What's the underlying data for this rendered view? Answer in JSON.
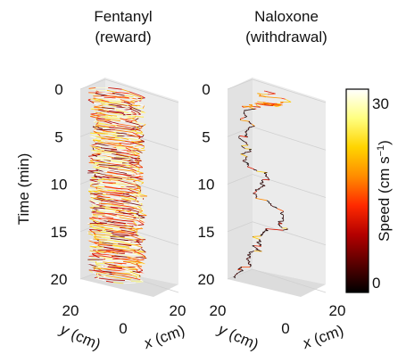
{
  "chart_data": [
    {
      "type": "line",
      "panel": "fentanyl",
      "title": [
        "Fentanyl",
        "(reward)"
      ],
      "zlabel": "Time (min)",
      "zlim": [
        0,
        20
      ],
      "zticks": [
        "0",
        "5",
        "10",
        "15",
        "20"
      ],
      "ylabel_italic": "y",
      "ylabel_unit": " (cm)",
      "xlabel_italic": "x",
      "xlabel_unit": " (cm)",
      "ytick_far": "20",
      "origin_tick": "0",
      "xtick_far": "20",
      "xlim": [
        0,
        20
      ],
      "ylim": [
        0,
        20
      ],
      "trajectory_description": "dense circling, high speed throughout",
      "speed_range": [
        5,
        32
      ]
    },
    {
      "type": "line",
      "panel": "naloxone",
      "title": [
        "Naloxone",
        "(withdrawal)"
      ],
      "zlim": [
        0,
        20
      ],
      "zticks": [
        "0",
        "5",
        "10",
        "15",
        "20"
      ],
      "ylabel_italic": "y",
      "ylabel_unit": " (cm)",
      "xlabel_italic": "x",
      "xlabel_unit": " (cm)",
      "ytick_far": "20",
      "origin_tick": "0",
      "xtick_far": "20",
      "xlim": [
        0,
        20
      ],
      "ylim": [
        0,
        20
      ],
      "trajectory_description": "sparse wandering, low speed with occasional bursts",
      "speed_range": [
        0,
        22
      ]
    }
  ],
  "colorbar": {
    "label": "Speed (cm s",
    "label_sup": "−1",
    "label_close": ")",
    "min": 0,
    "max": 30,
    "min_label": "0",
    "max_label": "30",
    "colormap": [
      "#000000",
      "#5a0000",
      "#b40000",
      "#ff2a00",
      "#ff8c00",
      "#ffd400",
      "#ffff80",
      "#ffffff"
    ]
  },
  "colors": {
    "pane": "#e7e7e7",
    "pane_grid": "#cfcfcf",
    "edge": "#9a9a9a"
  }
}
